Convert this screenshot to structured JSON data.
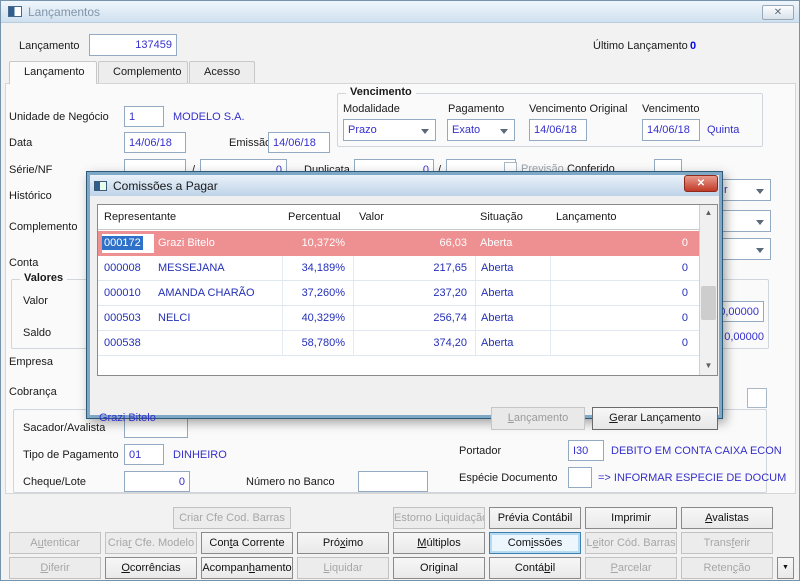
{
  "window": {
    "title": "Lançamentos",
    "close_glyph": "✕"
  },
  "header": {
    "lancamento_label": "Lançamento",
    "lancamento_value": "137459",
    "ultimo_label": "Último Lançamento",
    "ultimo_value": "0"
  },
  "tabs": [
    {
      "label": "Lançamento"
    },
    {
      "label": "Complemento"
    },
    {
      "label": "Acesso"
    }
  ],
  "form": {
    "unidade_label": "Unidade de Negócio",
    "unidade_value": "1",
    "unidade_desc": "MODELO S.A.",
    "data_label": "Data",
    "data_value": "14/06/18",
    "emissao_label": "Emissão",
    "emissao_value": "14/06/18",
    "serie_label": "Série/NF",
    "serie_sep": "/",
    "serie_nf_value": "0",
    "duplicata_label": "Duplicata",
    "duplicata_value": "0",
    "duplicata_sep": "/",
    "previsao_label": "Previsão",
    "conferido_label": "Conferido",
    "historico_label": "Histórico",
    "historico_combo_partial": "r",
    "complemento_label": "Complemento",
    "conta_label": "Conta",
    "vencimento": {
      "group": "Vencimento",
      "modalidade_label": "Modalidade",
      "modalidade_value": "Prazo",
      "pagamento_label": "Pagamento",
      "pagamento_value": "Exato",
      "venc_orig_label": "Vencimento Original",
      "venc_orig_value": "14/06/18",
      "venc_label": "Vencimento",
      "venc_value": "14/06/18",
      "venc_day": "Quinta"
    },
    "valores": {
      "group": "Valores",
      "valor_label": "Valor",
      "valor_value": "0,00000",
      "saldo_label": "Saldo",
      "saldo_value": "0,00000"
    },
    "empresa_label": "Empresa",
    "cobranca_label": "Cobrança",
    "sacador_label": "Sacador/Avalista",
    "tipo_pag_label": "Tipo de Pagamento",
    "tipo_pag_value": "01",
    "tipo_pag_desc": "DINHEIRO",
    "cheque_label": "Cheque/Lote",
    "cheque_value": "0",
    "numero_banco_label": "Número no Banco",
    "portador_label": "Portador",
    "portador_value": "I30",
    "portador_desc": "DEBITO EM CONTA CAIXA ECON",
    "especie_label": "Espécie Documento",
    "especie_desc": "=> INFORMAR ESPECIE DE DOCUM"
  },
  "dialog": {
    "title": "Comissões a Pagar",
    "close_glyph": "✕",
    "columns": [
      "Representante",
      "Percentual",
      "Valor",
      "Situação",
      "Lançamento"
    ],
    "rows": [
      {
        "code": "000172",
        "name": "Grazi Bitelo",
        "percent": "10,372%",
        "value": "66,03",
        "status": "Aberta",
        "lanc": "0"
      },
      {
        "code": "000008",
        "name": "MESSEJANA",
        "percent": "34,189%",
        "value": "217,65",
        "status": "Aberta",
        "lanc": "0"
      },
      {
        "code": "000010",
        "name": "AMANDA CHARÃO",
        "percent": "37,260%",
        "value": "237,20",
        "status": "Aberta",
        "lanc": "0"
      },
      {
        "code": "000503",
        "name": "NELCI",
        "percent": "40,329%",
        "value": "256,74",
        "status": "Aberta",
        "lanc": "0"
      },
      {
        "code": "000538",
        "name": "",
        "percent": "58,780%",
        "value": "374,20",
        "status": "Aberta",
        "lanc": "0"
      }
    ],
    "footer_name": "Grazi Bitelo",
    "buttons": [
      {
        "label": "Lançamento",
        "u": 0,
        "disabled": true
      },
      {
        "label": "Gerar Lançamento",
        "u": 0,
        "disabled": false
      }
    ]
  },
  "toolbar": {
    "row1": [
      {
        "label": "Criar Cfe Cod. Barras",
        "u": -1,
        "disabled": true
      },
      {
        "label": "Estorno Liquidação",
        "u": -1,
        "disabled": true
      },
      {
        "label": "Prévia Contábil",
        "u": -1,
        "disabled": false
      },
      {
        "label": "Imprimir",
        "u": -1,
        "disabled": false
      },
      {
        "label": "Avalistas",
        "u": 0,
        "disabled": false
      }
    ],
    "row2": [
      {
        "label": "Autenticar",
        "u": 1,
        "disabled": true
      },
      {
        "label": "Criar Cfe. Modelo",
        "u": 4,
        "disabled": true
      },
      {
        "label": "Conta Corrente",
        "u": 3,
        "disabled": false
      },
      {
        "label": "Próximo",
        "u": 3,
        "disabled": false
      },
      {
        "label": "Múltiplos",
        "u": 0,
        "disabled": false
      },
      {
        "label": "Comissões",
        "u": 3,
        "disabled": false
      },
      {
        "label": "Leitor Cód. Barras",
        "u": 1,
        "disabled": true
      },
      {
        "label": "Transferir",
        "u": 5,
        "disabled": true
      }
    ],
    "row3": [
      {
        "label": "Diferir",
        "u": 0,
        "disabled": true
      },
      {
        "label": "Ocorrências",
        "u": 0,
        "disabled": false
      },
      {
        "label": "Acompanhamento",
        "u": 7,
        "disabled": false
      },
      {
        "label": "Liquidar",
        "u": 0,
        "disabled": true
      },
      {
        "label": "Original",
        "u": -1,
        "disabled": false
      },
      {
        "label": "Contábil",
        "u": 5,
        "disabled": false
      },
      {
        "label": "Parcelar",
        "u": 0,
        "disabled": true
      },
      {
        "label": "Retenção",
        "u": 5,
        "disabled": true
      }
    ],
    "more_glyph": "▼"
  }
}
